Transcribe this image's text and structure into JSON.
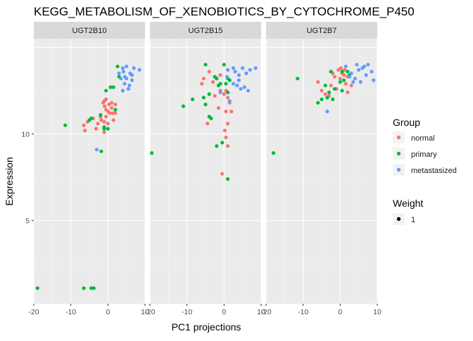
{
  "chart_data": {
    "type": "scatter",
    "title": "KEGG_METABOLISM_OF_XENOBIOTICS_BY_CYTOCHROME_P450",
    "xlabel": "PC1 projections",
    "ylabel": "Expression",
    "xlim": [
      -20,
      10
    ],
    "ylim": [
      0.2,
      15.5
    ],
    "x_ticks": [
      -20,
      -10,
      0,
      10
    ],
    "x_tick_labels": [
      "-20",
      "-10",
      "0",
      "10"
    ],
    "y_ticks": [
      5,
      10
    ],
    "y_tick_labels": [
      "5",
      "10"
    ],
    "grid": true,
    "legend": {
      "placement": "right",
      "group_title": "Group",
      "groups": [
        {
          "name": "normal",
          "color": "#F8766D"
        },
        {
          "name": "primary",
          "color": "#00BA38"
        },
        {
          "name": "metastasized",
          "color": "#619CFF"
        }
      ],
      "weight_title": "Weight",
      "weight_label": "1"
    },
    "panels": [
      {
        "name": "UGT2B10",
        "series": [
          {
            "group": "normal",
            "points": [
              [
                -1,
                11.9
              ],
              [
                0,
                11.3
              ],
              [
                -1.3,
                11.8
              ],
              [
                1,
                11.8
              ],
              [
                -1.8,
                10.8
              ],
              [
                -2,
                11
              ],
              [
                -0.5,
                11.4
              ],
              [
                0.5,
                11.2
              ],
              [
                -0.9,
                11.6
              ],
              [
                2,
                11.2
              ],
              [
                1.5,
                10.8
              ],
              [
                -3.2,
                10.3
              ],
              [
                -1,
                10.7
              ],
              [
                0,
                10.6
              ],
              [
                -0.5,
                11
              ],
              [
                -1,
                10.1
              ],
              [
                -2.7,
                10.6
              ],
              [
                -0.5,
                12
              ],
              [
                1,
                11.5
              ],
              [
                0.3,
                11.7
              ],
              [
                2,
                11.7
              ],
              [
                1.3,
                11.2
              ],
              [
                -6.2,
                10.2
              ],
              [
                -6.5,
                10.5
              ],
              [
                -4,
                10.9
              ],
              [
                -5.5,
                10.7
              ]
            ]
          },
          {
            "group": "primary",
            "points": [
              [
                -11.5,
                10.5
              ],
              [
                -5,
                10.8
              ],
              [
                -4.5,
                10.9
              ],
              [
                -2,
                11.1
              ],
              [
                -1,
                10.3
              ],
              [
                -1,
                10.4
              ],
              [
                0,
                10.3
              ],
              [
                0.7,
                12.7
              ],
              [
                1.5,
                12.7
              ],
              [
                2,
                11.4
              ],
              [
                -0.5,
                12.5
              ],
              [
                2.6,
                13.9
              ],
              [
                3,
                13.3
              ],
              [
                -19,
                1.1
              ],
              [
                -6.5,
                1.1
              ],
              [
                -4.5,
                1.1
              ],
              [
                -3.8,
                1.1
              ],
              [
                -1.8,
                9
              ]
            ]
          },
          {
            "group": "metastasized",
            "points": [
              [
                3,
                13.5
              ],
              [
                4,
                13.8
              ],
              [
                5,
                13.2
              ],
              [
                6,
                13.5
              ],
              [
                7,
                13.8
              ],
              [
                4.5,
                12.9
              ],
              [
                5.5,
                12.6
              ],
              [
                6.5,
                13.1
              ],
              [
                4,
                12.5
              ],
              [
                3.5,
                13.2
              ],
              [
                5,
                13.9
              ],
              [
                6.5,
                13.4
              ],
              [
                8.5,
                13.7
              ],
              [
                4.6,
                13.3
              ],
              [
                5.8,
                12.8
              ],
              [
                4.2,
                13.6
              ],
              [
                -3,
                9.1
              ]
            ]
          }
        ]
      },
      {
        "name": "UGT2B15",
        "series": [
          {
            "group": "normal",
            "points": [
              [
                -5.5,
                13.2
              ],
              [
                -6,
                12.9
              ],
              [
                -4,
                13.6
              ],
              [
                -3,
                13
              ],
              [
                -2.5,
                12.2
              ],
              [
                -2,
                13.2
              ],
              [
                -1,
                13.4
              ],
              [
                0,
                12.3
              ],
              [
                1,
                12.1
              ],
              [
                1.5,
                11.8
              ],
              [
                0.5,
                11.3
              ],
              [
                1,
                10.6
              ],
              [
                0.2,
                10.2
              ],
              [
                0.5,
                9.8
              ],
              [
                1,
                9.3
              ],
              [
                -0.5,
                7.7
              ],
              [
                -1.5,
                11.5
              ],
              [
                -4.5,
                10.6
              ],
              [
                2,
                11.3
              ],
              [
                -1,
                12.5
              ],
              [
                0.5,
                12.5
              ]
            ]
          },
          {
            "group": "primary",
            "points": [
              [
                -19.5,
                8.9
              ],
              [
                -11,
                11.6
              ],
              [
                -8.5,
                12
              ],
              [
                -5.5,
                12.1
              ],
              [
                -5,
                14
              ],
              [
                -4,
                11
              ],
              [
                -3.5,
                10.9
              ],
              [
                -2.5,
                13.3
              ],
              [
                -2,
                13.2
              ],
              [
                -2,
                9.3
              ],
              [
                -1,
                12.9
              ],
              [
                0,
                14
              ],
              [
                1,
                13.2
              ],
              [
                1.5,
                13.1
              ],
              [
                1,
                7.4
              ],
              [
                0.5,
                12.9
              ],
              [
                -5,
                11.7
              ],
              [
                -4,
                12.3
              ],
              [
                -1.5,
                12.8
              ],
              [
                1,
                12.4
              ],
              [
                -0.5,
                9.5
              ]
            ]
          },
          {
            "group": "metastasized",
            "points": [
              [
                1,
                13.7
              ],
              [
                3,
                13.6
              ],
              [
                4,
                13.4
              ],
              [
                5,
                13.8
              ],
              [
                6,
                13.5
              ],
              [
                7,
                13.7
              ],
              [
                8.5,
                13.8
              ],
              [
                2.5,
                12.9
              ],
              [
                3.5,
                12.8
              ],
              [
                4.5,
                12.6
              ],
              [
                5.5,
                12.7
              ],
              [
                6.5,
                12.5
              ],
              [
                4,
                13.1
              ],
              [
                1.5,
                11.9
              ],
              [
                -1,
                12.4
              ],
              [
                0.8,
                13.3
              ],
              [
                2.5,
                13.8
              ]
            ]
          }
        ]
      },
      {
        "name": "UGT2B7",
        "series": [
          {
            "group": "normal",
            "points": [
              [
                -6,
                13
              ],
              [
                -5,
                12.5
              ],
              [
                -4,
                12.3
              ],
              [
                -3,
                12.2
              ],
              [
                -2,
                13.5
              ],
              [
                -1,
                12.6
              ],
              [
                0,
                13.2
              ],
              [
                1,
                13.4
              ],
              [
                2,
                13.3
              ],
              [
                0.5,
                13.5
              ],
              [
                1.5,
                12.9
              ],
              [
                -1.5,
                13.3
              ],
              [
                -0.5,
                13.7
              ],
              [
                0.2,
                13.8
              ],
              [
                1.2,
                13.7
              ],
              [
                -2.5,
                12.8
              ],
              [
                2,
                12.4
              ],
              [
                3,
                12.8
              ]
            ]
          },
          {
            "group": "primary",
            "points": [
              [
                -18,
                8.9
              ],
              [
                -11.5,
                13.2
              ],
              [
                -6,
                11.8
              ],
              [
                -5,
                12
              ],
              [
                -3.5,
                12.1
              ],
              [
                -4,
                12.8
              ],
              [
                -2.5,
                13.6
              ],
              [
                -1.5,
                12.6
              ],
              [
                0,
                13
              ],
              [
                0.5,
                12.5
              ],
              [
                1,
                13.1
              ],
              [
                2,
                13.6
              ],
              [
                2.5,
                13.4
              ],
              [
                -2,
                12
              ],
              [
                -3,
                12.4
              ],
              [
                0.5,
                13.6
              ]
            ]
          },
          {
            "group": "metastasized",
            "points": [
              [
                -3.5,
                11.3
              ],
              [
                1.5,
                13.9
              ],
              [
                3,
                13.5
              ],
              [
                4,
                13.2
              ],
              [
                5,
                13.7
              ],
              [
                6,
                13.8
              ],
              [
                7,
                13.4
              ],
              [
                8.5,
                13.6
              ],
              [
                9,
                13.1
              ],
              [
                5.5,
                13
              ],
              [
                6.5,
                13.9
              ],
              [
                4.5,
                14
              ],
              [
                3.5,
                13
              ],
              [
                7.5,
                14
              ],
              [
                2.5,
                13.3
              ]
            ]
          }
        ]
      }
    ]
  }
}
